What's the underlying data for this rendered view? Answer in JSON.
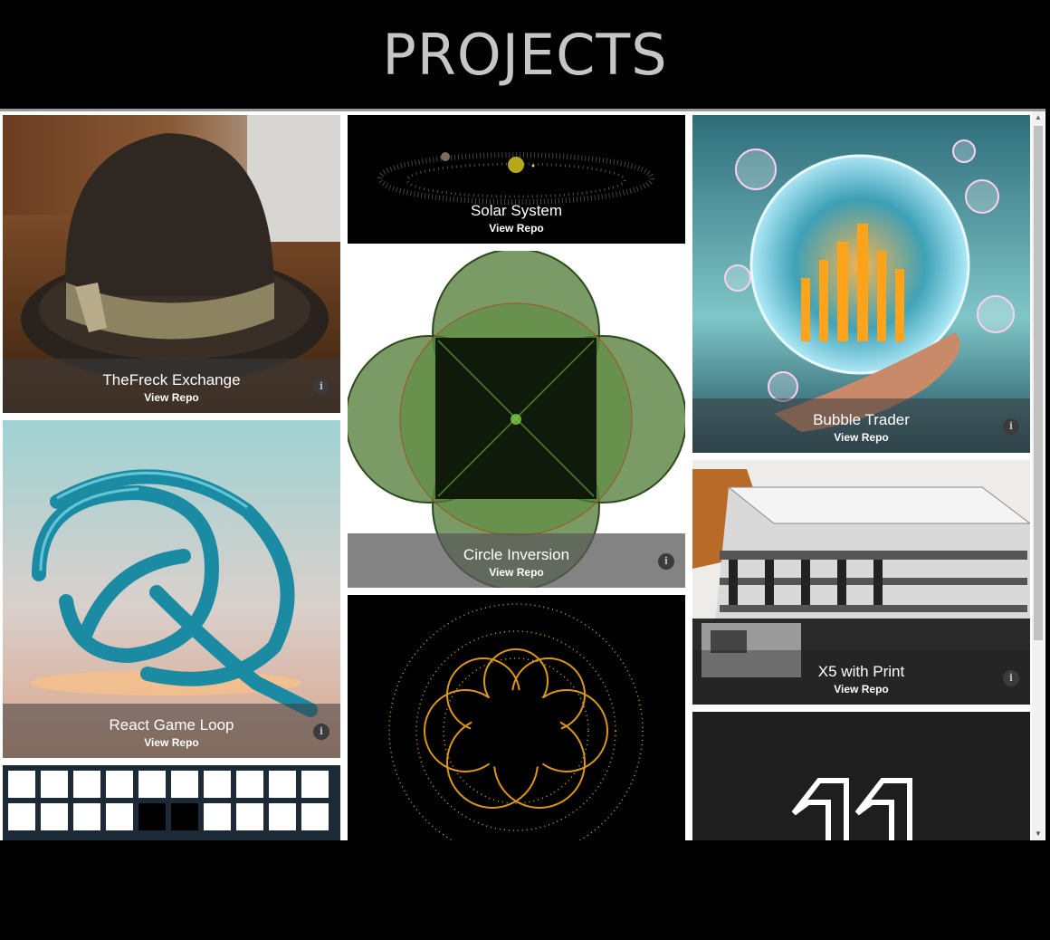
{
  "page": {
    "title": "PROJECTS"
  },
  "projects": [
    {
      "title": "TheFreck Exchange",
      "link": "View Repo",
      "icon": "info-icon"
    },
    {
      "title": "React Game Loop",
      "link": "View Repo",
      "icon": "info-icon"
    },
    {
      "title": "Solar System",
      "link": "View Repo"
    },
    {
      "title": "Circle Inversion",
      "link": "View Repo",
      "icon": "info-icon"
    },
    {
      "title": "Bubble Trader",
      "link": "View Repo",
      "icon": "info-icon"
    },
    {
      "title": "X5 with Print",
      "link": "View Repo",
      "icon": "info-icon"
    }
  ],
  "info_glyph": "i",
  "colors": {
    "background": "#000000",
    "title": "#c6c6c6",
    "caption_bg": "#3c3c3c",
    "accent_gold": "#f0a020",
    "accent_green": "#3a6a2a"
  }
}
